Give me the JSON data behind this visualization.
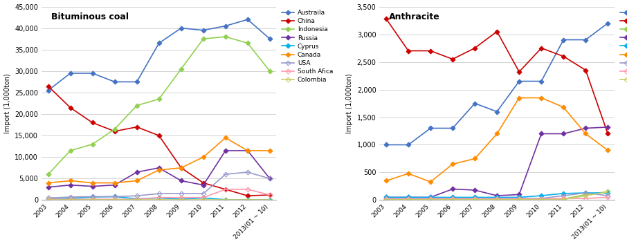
{
  "x_labels": [
    "2003",
    "2004",
    "2005",
    "2006",
    "2007",
    "2008",
    "2009",
    "2010",
    "2011",
    "2012",
    "2013(01 ~ 10)"
  ],
  "bg_color": "#f0f0f0",
  "bituminous": {
    "title": "Bituminous coal",
    "ylabel": "Import (1,000ton)",
    "ylim": [
      0,
      45000
    ],
    "yticks": [
      0,
      5000,
      10000,
      15000,
      20000,
      25000,
      30000,
      35000,
      40000,
      45000
    ],
    "series": {
      "Austraila": {
        "color": "#4472C4",
        "marker": "D",
        "filled": true,
        "data": [
          25500,
          29500,
          29500,
          27500,
          27500,
          36500,
          40000,
          39500,
          40500,
          42000,
          37500
        ]
      },
      "China": {
        "color": "#CC0000",
        "marker": "D",
        "filled": true,
        "data": [
          26500,
          21500,
          18000,
          16000,
          17000,
          15000,
          7500,
          4000,
          2500,
          1000,
          1200
        ]
      },
      "Indonesia": {
        "color": "#92D050",
        "marker": "D",
        "filled": true,
        "data": [
          6000,
          11500,
          13000,
          16500,
          22000,
          23500,
          30500,
          37500,
          38000,
          36500,
          30000
        ]
      },
      "Russia": {
        "color": "#7030A0",
        "marker": "D",
        "filled": true,
        "data": [
          3000,
          3500,
          3200,
          3500,
          6500,
          7500,
          4500,
          3500,
          11500,
          11500,
          5000
        ]
      },
      "Cyprus": {
        "color": "#00B0F0",
        "marker": "D",
        "filled": true,
        "data": [
          200,
          400,
          700,
          800,
          300,
          500,
          200,
          500,
          100,
          100,
          100
        ]
      },
      "Canada": {
        "color": "#FF8C00",
        "marker": "D",
        "filled": true,
        "data": [
          4000,
          4500,
          4000,
          4000,
          4500,
          7000,
          7500,
          10000,
          14500,
          11500,
          11500
        ]
      },
      "USA": {
        "color": "#9999CC",
        "marker": "D",
        "filled": false,
        "data": [
          500,
          700,
          800,
          800,
          1000,
          1500,
          1500,
          1500,
          6000,
          6500,
          5000
        ]
      },
      "South Afica": {
        "color": "#FF99AA",
        "marker": "D",
        "filled": false,
        "data": [
          200,
          200,
          200,
          200,
          200,
          600,
          600,
          600,
          2500,
          2500,
          1200
        ]
      },
      "Colombia": {
        "color": "#CCCC66",
        "marker": "D",
        "filled": false,
        "data": [
          100,
          100,
          100,
          100,
          100,
          100,
          100,
          100,
          100,
          100,
          100
        ]
      }
    }
  },
  "anthracite": {
    "title": "Anthracite",
    "ylabel": "Import (1,000ton)",
    "ylim": [
      0,
      3500
    ],
    "yticks": [
      0,
      500,
      1000,
      1500,
      2000,
      2500,
      3000,
      3500
    ],
    "series": {
      "Austraila": {
        "color": "#4472C4",
        "marker": "D",
        "filled": true,
        "data": [
          1000,
          1000,
          1300,
          1300,
          1750,
          1600,
          2150,
          2150,
          2900,
          2900,
          3200
        ]
      },
      "China": {
        "color": "#CC0000",
        "marker": "D",
        "filled": true,
        "data": [
          3280,
          2700,
          2700,
          2550,
          2750,
          3050,
          2320,
          2750,
          2600,
          2350,
          1200
        ]
      },
      "Indonesia": {
        "color": "#92D050",
        "marker": "D",
        "filled": true,
        "data": [
          10,
          10,
          20,
          20,
          20,
          20,
          20,
          20,
          20,
          100,
          150
        ]
      },
      "Russia": {
        "color": "#7030A0",
        "marker": "D",
        "filled": true,
        "data": [
          50,
          50,
          50,
          200,
          180,
          80,
          100,
          1200,
          1200,
          1300,
          1320
        ]
      },
      "Cyprus": {
        "color": "#00B0F0",
        "marker": "D",
        "filled": true,
        "data": [
          50,
          50,
          50,
          50,
          50,
          50,
          50,
          80,
          120,
          130,
          130
        ]
      },
      "Vietnam": {
        "color": "#FF8C00",
        "marker": "D",
        "filled": true,
        "data": [
          350,
          480,
          330,
          650,
          750,
          1200,
          1850,
          1850,
          1680,
          1200,
          900
        ]
      },
      "Philippines": {
        "color": "#9999CC",
        "marker": "D",
        "filled": false,
        "data": [
          30,
          30,
          30,
          30,
          30,
          30,
          30,
          30,
          80,
          130,
          80
        ]
      },
      "Ukraine": {
        "color": "#FF99AA",
        "marker": "D",
        "filled": false,
        "data": [
          20,
          20,
          20,
          20,
          20,
          20,
          20,
          20,
          30,
          30,
          50
        ]
      },
      "Thailand": {
        "color": "#CCCC66",
        "marker": "D",
        "filled": false,
        "data": [
          10,
          10,
          10,
          10,
          10,
          10,
          10,
          10,
          10,
          80,
          150
        ]
      }
    }
  }
}
